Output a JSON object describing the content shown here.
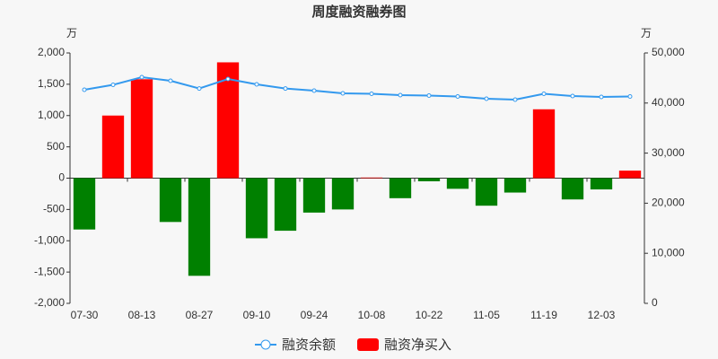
{
  "chart_data": {
    "type": "bar_line",
    "title": "周度融资融券图",
    "y_unit": "万",
    "y2_unit": "万",
    "categories": [
      "07-30",
      null,
      "08-13",
      null,
      "08-27",
      null,
      "09-10",
      null,
      "09-24",
      null,
      "10-08",
      null,
      "10-22",
      null,
      "11-05",
      null,
      "11-19",
      null,
      "12-03",
      null
    ],
    "series": [
      {
        "name": "融资余额",
        "type": "line",
        "axis": "y2",
        "color": "#3399ee",
        "values": [
          42650,
          43640,
          45160,
          44440,
          42900,
          44800,
          43730,
          42900,
          42470,
          41930,
          41850,
          41580,
          41490,
          41310,
          40860,
          40680,
          41850,
          41400,
          41220,
          41310
        ]
      },
      {
        "name": "融资净买入",
        "type": "bar",
        "axis": "y",
        "color": "#ff0000",
        "negative_color": "#008000",
        "values": [
          -820,
          1000,
          1580,
          -700,
          -1560,
          1850,
          -960,
          -840,
          -550,
          -500,
          10,
          -320,
          -50,
          -170,
          -440,
          -230,
          1100,
          -340,
          -180,
          120
        ]
      }
    ],
    "ylim": [
      -2000,
      2000
    ],
    "yticks": [
      {
        "value": -2000,
        "label": "-2,000"
      },
      {
        "value": -1500,
        "label": "-1,500"
      },
      {
        "value": -1000,
        "label": "-1,000"
      },
      -500,
      0,
      500,
      {
        "value": 1000,
        "label": "1,000"
      },
      {
        "value": 1500,
        "label": "1,500"
      },
      {
        "value": 2000,
        "label": "2,000"
      }
    ],
    "y2lim": [
      0,
      50000
    ],
    "y2ticks": [
      0,
      {
        "value": 10000,
        "label": "10,000"
      },
      {
        "value": 20000,
        "label": "20,000"
      },
      {
        "value": 30000,
        "label": "30,000"
      },
      {
        "value": 40000,
        "label": "40,000"
      },
      {
        "value": 50000,
        "label": "50,000"
      }
    ]
  }
}
